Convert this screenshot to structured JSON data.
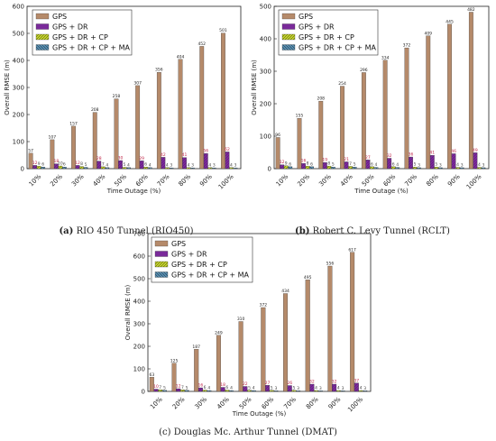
{
  "chart_data": [
    {
      "type": "bar",
      "caption_letter": "(a)",
      "caption_text": " RIO 450 Tunnel (RIO450)",
      "categories": [
        "10%",
        "20%",
        "30%",
        "40%",
        "50%",
        "60%",
        "70%",
        "80%",
        "90%",
        "100%"
      ],
      "xlabel": "Time Outage (%)",
      "ylabel": "Overall RMSE (m)",
      "ylim": [
        0,
        600
      ],
      "yticks": [
        0,
        100,
        200,
        300,
        400,
        500,
        600
      ],
      "legend_position": "top-left",
      "grid": false,
      "series": [
        {
          "name": "GPS",
          "values": [
            57,
            107,
            157,
            208,
            258,
            307,
            356,
            404,
            452,
            501
          ]
        },
        {
          "name": "GPS + DR",
          "values": [
            12,
            18,
            12,
            28,
            30,
            29,
            42,
            41,
            56,
            62
          ]
        },
        {
          "name": "GPS + DR + CP",
          "values": [
            9,
            10,
            8,
            7,
            5,
            6,
            4,
            4,
            4,
            4
          ]
        },
        {
          "name": "GPS + DR + CP + MA",
          "values": [
            6,
            6,
            5,
            4,
            4,
            4,
            3,
            3,
            3,
            3
          ]
        }
      ]
    },
    {
      "type": "bar",
      "caption_letter": "(b)",
      "caption_text": " Robert C. Levy Tunnel (RCLT)",
      "categories": [
        "10%",
        "20%",
        "30%",
        "40%",
        "50%",
        "60%",
        "70%",
        "80%",
        "90%",
        "100%"
      ],
      "xlabel": "Time Outage (%)",
      "ylabel": "Overall RMSE (m)",
      "ylim": [
        0,
        500
      ],
      "yticks": [
        0,
        100,
        200,
        300,
        400,
        500
      ],
      "legend_position": "top-left",
      "grid": false,
      "series": [
        {
          "name": "GPS",
          "values": [
            96,
            155,
            208,
            254,
            296,
            334,
            372,
            409,
            445,
            482
          ]
        },
        {
          "name": "GPS + DR",
          "values": [
            12,
            16,
            19,
            21,
            27,
            32,
            36,
            41,
            46,
            49
          ]
        },
        {
          "name": "GPS + DR + CP",
          "values": [
            9,
            8,
            8,
            7,
            6,
            6,
            5,
            5,
            4,
            4
          ]
        },
        {
          "name": "GPS + DR + CP + MA",
          "values": [
            6,
            6,
            5,
            5,
            4,
            4,
            3,
            3,
            3,
            3
          ]
        }
      ]
    },
    {
      "type": "bar",
      "caption_letter": "(c)",
      "caption_text": " Douglas Mc. Arthur Tunnel (DMAT)",
      "categories": [
        "10%",
        "20%",
        "30%",
        "40%",
        "50%",
        "60%",
        "70%",
        "80%",
        "90%",
        "100%"
      ],
      "xlabel": "Time Outage (%)",
      "ylabel": "Overall RMSE (m)",
      "ylim": [
        0,
        700
      ],
      "yticks": [
        0,
        100,
        200,
        300,
        400,
        500,
        600,
        700
      ],
      "legend_position": "top-left",
      "grid": false,
      "series": [
        {
          "name": "GPS",
          "values": [
            63,
            125,
            187,
            249,
            310,
            372,
            434,
            495,
            556,
            617
          ]
        },
        {
          "name": "GPS + DR",
          "values": [
            10,
            12,
            16,
            18,
            22,
            27,
            26,
            32,
            32,
            37
          ]
        },
        {
          "name": "GPS + DR + CP",
          "values": [
            7,
            7,
            6,
            6,
            5,
            5,
            5,
            4,
            4,
            4
          ]
        },
        {
          "name": "GPS + DR + CP + MA",
          "values": [
            5,
            5,
            4,
            4,
            4,
            3,
            3,
            3,
            3,
            3
          ]
        }
      ]
    }
  ],
  "colors": {
    "gps": "#b58a6a",
    "dr": "#7a2a9a",
    "cp": "#c8d234",
    "ma": "#5a8fb0",
    "axis": "#222222",
    "gps_label": "#222222",
    "dr_label": "#c0284a",
    "small_label": "#444444"
  }
}
